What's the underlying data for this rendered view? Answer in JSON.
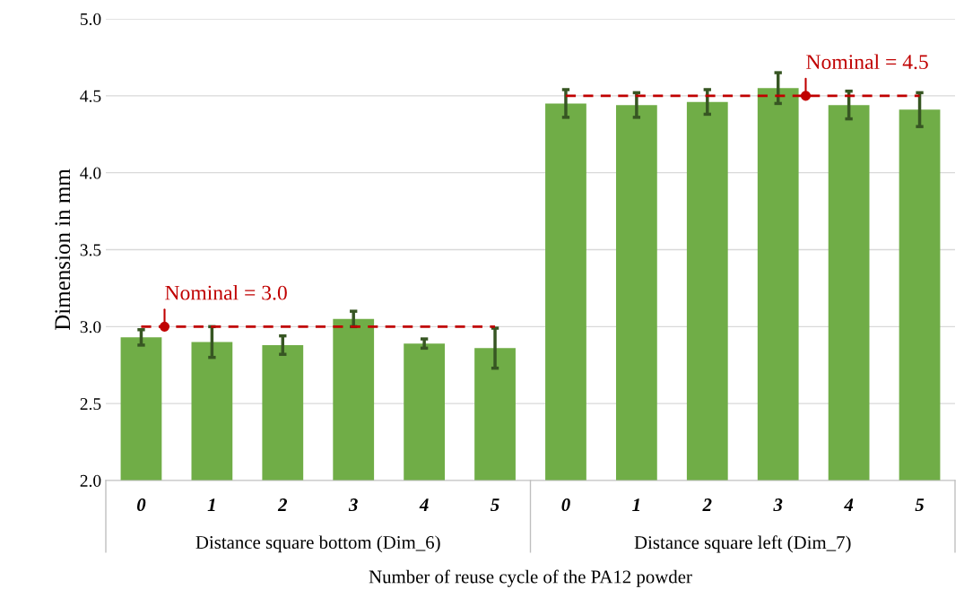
{
  "chart_data": {
    "type": "bar",
    "xlabel": "Number of reuse cycle of the PA12 powder",
    "ylabel": "Dimension in mm",
    "categories": [
      "0",
      "1",
      "2",
      "3",
      "4",
      "5",
      "0",
      "1",
      "2",
      "3",
      "4",
      "5"
    ],
    "values": [
      2.93,
      2.9,
      2.88,
      3.05,
      2.89,
      2.86,
      4.45,
      4.44,
      4.46,
      4.55,
      4.44,
      4.41
    ],
    "errors": [
      0.05,
      0.1,
      0.06,
      0.05,
      0.03,
      0.13,
      0.09,
      0.08,
      0.08,
      0.1,
      0.09,
      0.11
    ],
    "color": "#70ad47",
    "ylim": [
      2.0,
      5.0
    ],
    "yticks": [
      {
        "value": 2.0,
        "label": "2.0"
      },
      {
        "value": 2.5,
        "label": "2.5"
      },
      {
        "value": 3.0,
        "label": "3.0"
      },
      {
        "value": 3.5,
        "label": "3.5"
      },
      {
        "value": 4.0,
        "label": "4.0"
      },
      {
        "value": 4.5,
        "label": "4.5"
      },
      {
        "value": 5.0,
        "label": "5.0"
      }
    ],
    "grid": "y",
    "ref_lines": [
      {
        "axis": "y",
        "value": 3.0,
        "label": "Nominal = 3.0",
        "color": "#c00000",
        "line_style": "dashed"
      },
      {
        "axis": "y",
        "value": 4.5,
        "label": "Nominal = 4.5",
        "color": "#c00000",
        "line_style": "dashed"
      }
    ],
    "annotations": [
      "Distance square bottom (Dim_6)",
      "Distance square left (Dim_7)"
    ]
  }
}
